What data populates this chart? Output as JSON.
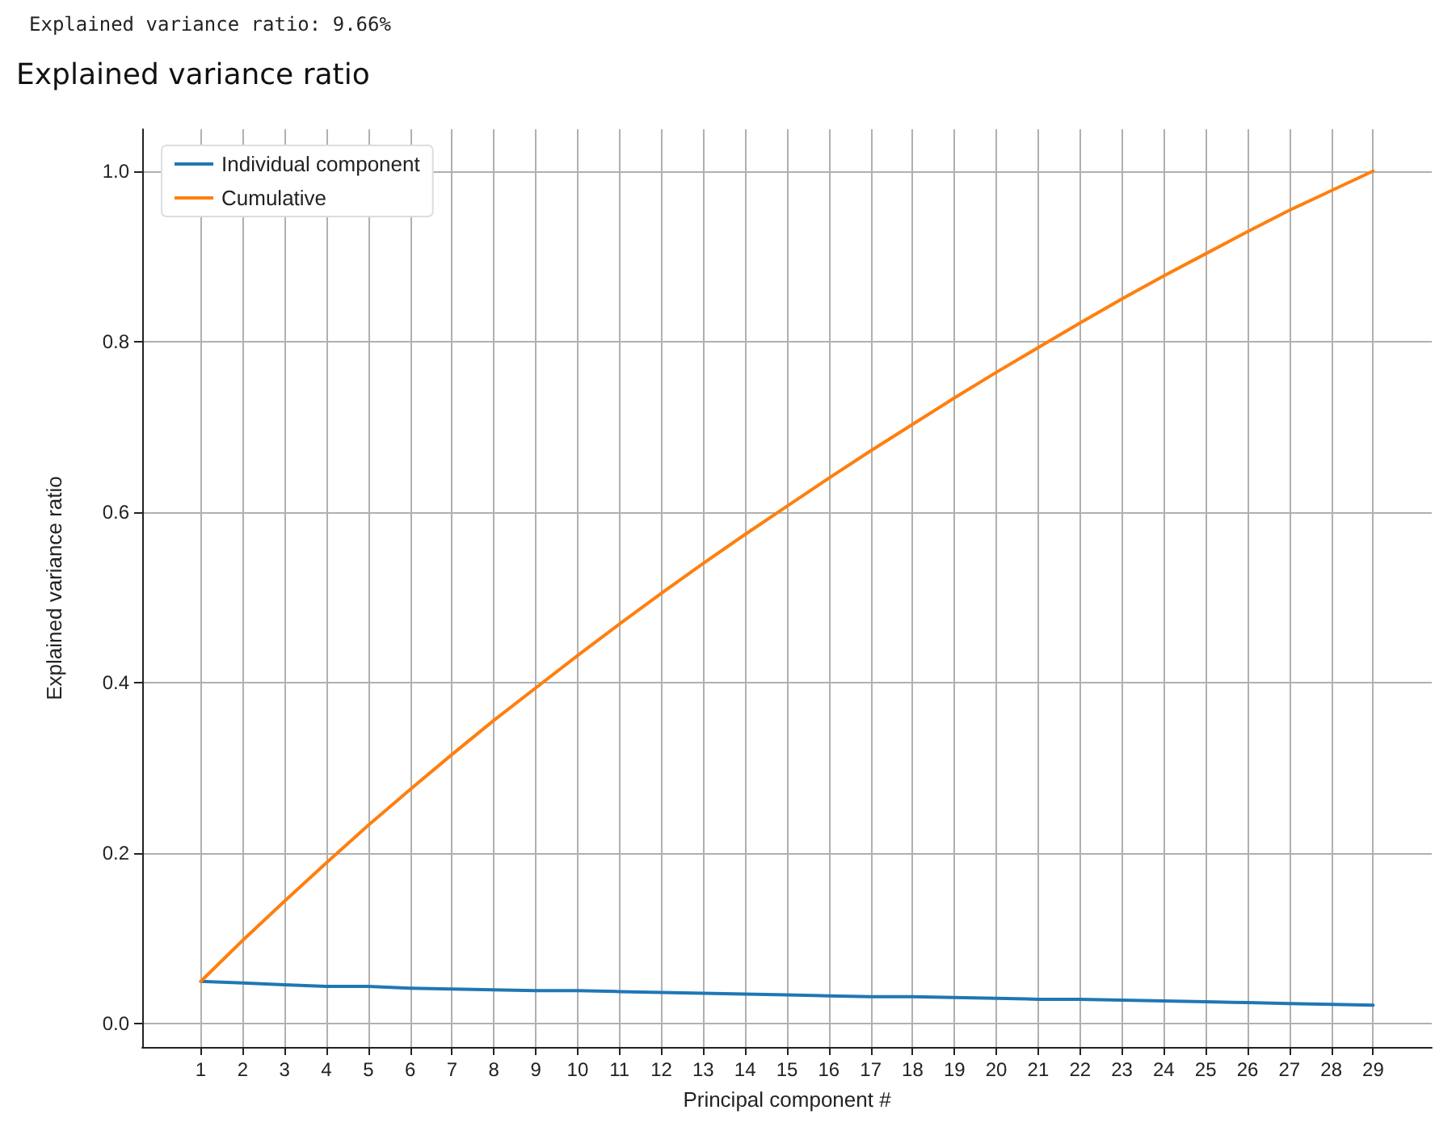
{
  "chart_data": {
    "type": "line",
    "title": "Explained variance ratio",
    "annotations": [
      "Explained variance ratio: 9.66%"
    ],
    "xlabel": "Principal component #",
    "ylabel": "Explained variance ratio",
    "x": [
      1,
      2,
      3,
      4,
      5,
      6,
      7,
      8,
      9,
      10,
      11,
      12,
      13,
      14,
      15,
      16,
      17,
      18,
      19,
      20,
      21,
      22,
      23,
      24,
      25,
      26,
      27,
      28,
      29
    ],
    "series": [
      {
        "name": "Individual component",
        "color": "#1f77b4",
        "values": [
          0.05,
          0.048,
          0.046,
          0.044,
          0.044,
          0.042,
          0.041,
          0.04,
          0.039,
          0.039,
          0.038,
          0.037,
          0.036,
          0.035,
          0.034,
          0.033,
          0.032,
          0.032,
          0.031,
          0.03,
          0.029,
          0.029,
          0.028,
          0.027,
          0.026,
          0.025,
          0.024,
          0.023,
          0.022
        ]
      },
      {
        "name": "Cumulative",
        "color": "#ff7f0e",
        "values": [
          0.05,
          0.098,
          0.144,
          0.189,
          0.233,
          0.275,
          0.316,
          0.356,
          0.394,
          0.432,
          0.469,
          0.505,
          0.54,
          0.574,
          0.607,
          0.64,
          0.672,
          0.703,
          0.734,
          0.764,
          0.793,
          0.822,
          0.85,
          0.877,
          0.903,
          0.929,
          0.954,
          0.977,
          1.0
        ]
      }
    ],
    "xlim": [
      -0.4,
      30.4
    ],
    "xticks": [
      1,
      2,
      3,
      4,
      5,
      6,
      7,
      8,
      9,
      10,
      11,
      12,
      13,
      14,
      15,
      16,
      17,
      18,
      19,
      20,
      21,
      22,
      23,
      24,
      25,
      26,
      27,
      28,
      29
    ],
    "ylim": [
      -0.027,
      1.049
    ],
    "yticks": [
      {
        "value": 0,
        "label": "0.0"
      },
      {
        "value": 0.2,
        "label": "0.2"
      },
      {
        "value": 0.4,
        "label": "0.4"
      },
      {
        "value": 0.6,
        "label": "0.6"
      },
      {
        "value": 0.8,
        "label": "0.8"
      },
      {
        "value": 1,
        "label": "1.0"
      }
    ],
    "grid": true,
    "legend": "top left",
    "marker": "none",
    "line_style": "solid"
  }
}
